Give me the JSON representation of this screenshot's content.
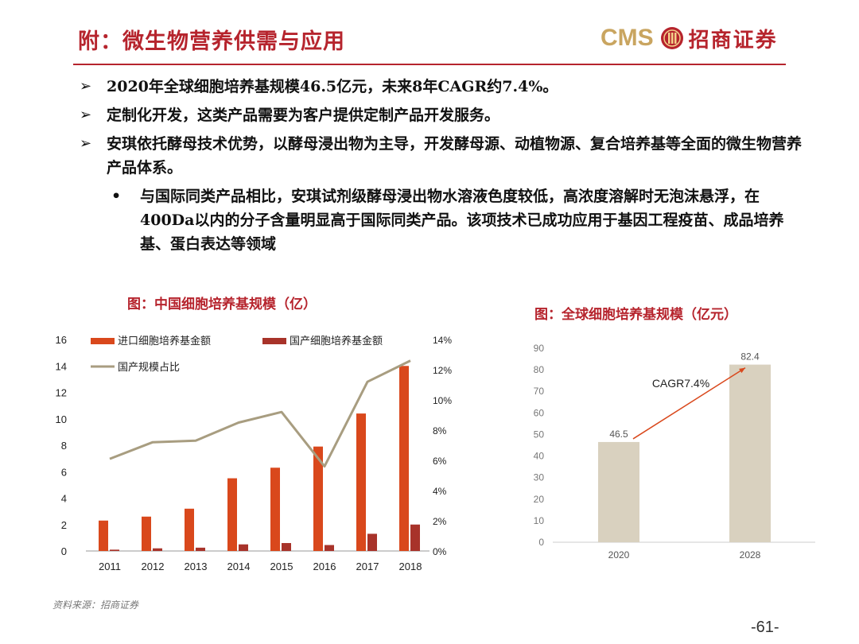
{
  "header": {
    "title": "附：微生物营养供需与应用",
    "logo_en": "CMS",
    "logo_cn": "招商证券"
  },
  "bullets": [
    {
      "text": "2020年全球细胞培养基规模46.5亿元，未来8年CAGR约7.4%。"
    },
    {
      "text": "定制化开发，这类产品需要为客户提供定制产品开发服务。"
    },
    {
      "text": "安琪依托酵母技术优势，以酵母浸出物为主导，开发酵母源、动植物源、复合培养基等全面的微生物营养产品体系。"
    }
  ],
  "sub_bullet": {
    "marker": "•",
    "text": "与国际同类产品相比，安琪试剂级酵母浸出物水溶液色度较低，高浓度溶解时无泡沫悬浮，在400Da以内的分子含量明显高于国际同类产品。该项技术已成功应用于基因工程疫苗、成品培养基、蛋白表达等领域"
  },
  "bullet_marker": "➢",
  "chart_data": [
    {
      "type": "bar",
      "title": "图：中国细胞培养基规模（亿）",
      "categories": [
        "2011",
        "2012",
        "2013",
        "2014",
        "2015",
        "2016",
        "2017",
        "2018"
      ],
      "series": [
        {
          "name": "进口细胞培养基金额",
          "type": "bar",
          "axis": "left",
          "color": "#d9481c",
          "values": [
            2.3,
            2.6,
            3.2,
            5.5,
            6.3,
            7.9,
            10.4,
            14.0
          ]
        },
        {
          "name": "国产细胞培养基金额",
          "type": "bar",
          "axis": "left",
          "color": "#a8332a",
          "values": [
            0.1,
            0.2,
            0.25,
            0.5,
            0.6,
            0.45,
            1.3,
            2.0
          ]
        },
        {
          "name": "国产规模占比",
          "type": "line",
          "axis": "right",
          "color": "#a89d80",
          "values": [
            6.1,
            7.2,
            7.3,
            8.5,
            9.2,
            5.6,
            11.2,
            12.6
          ]
        }
      ],
      "yticks_left": [
        "0",
        "2",
        "4",
        "6",
        "8",
        "10",
        "12",
        "14",
        "16"
      ],
      "ylim_left": [
        0,
        16
      ],
      "yticks_right": [
        "0%",
        "2%",
        "4%",
        "6%",
        "8%",
        "10%",
        "12%",
        "14%"
      ],
      "ylim_right": [
        0,
        14
      ],
      "legend": "top-left"
    },
    {
      "type": "bar",
      "title": "图：全球细胞培养基规模（亿元）",
      "categories": [
        "2020",
        "2028"
      ],
      "values": [
        46.5,
        82.4
      ],
      "value_labels": [
        "46.5",
        "82.4"
      ],
      "bar_color": "#d9d1bf",
      "yticks": [
        "0",
        "10",
        "20",
        "30",
        "40",
        "50",
        "60",
        "70",
        "80",
        "90"
      ],
      "ylim": [
        0,
        90
      ],
      "annotation": "CAGR7.4%",
      "arrow_color": "#d9481c"
    }
  ],
  "footer": {
    "source": "资料来源：招商证券",
    "page": "-61-"
  }
}
